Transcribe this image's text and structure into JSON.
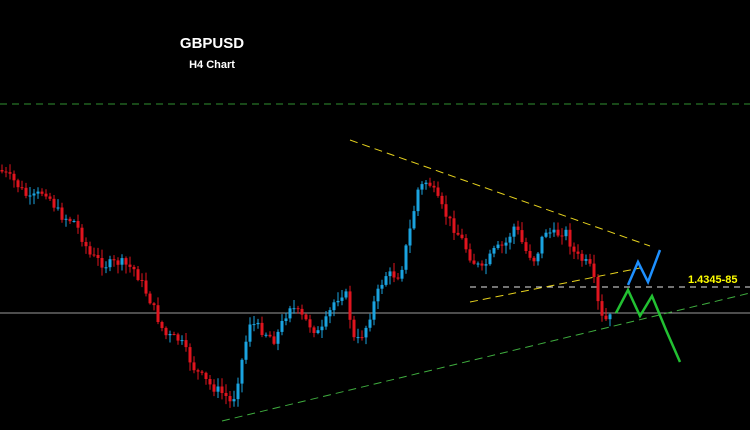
{
  "chart_data": {
    "type": "candlestick",
    "title": "GBPUSD",
    "subtitle": "H4 Chart",
    "xlabel": "",
    "ylabel": "",
    "grid": false,
    "legend": "none",
    "level_label": "1.4345-85",
    "colors": {
      "background": "#000000",
      "bull": "#1aa3e0",
      "bear": "#e0141e",
      "trend_upper": "#e6d21e",
      "trend_lower": "#3fae3f",
      "resistance": "#2f8f2f",
      "level": "#e6e6e6",
      "horizontal": "#9a9a9a",
      "forecast_blue": "#1e90ff",
      "forecast_green": "#22c032",
      "text": "#ffffff",
      "level_text": "#ffff00"
    }
  }
}
